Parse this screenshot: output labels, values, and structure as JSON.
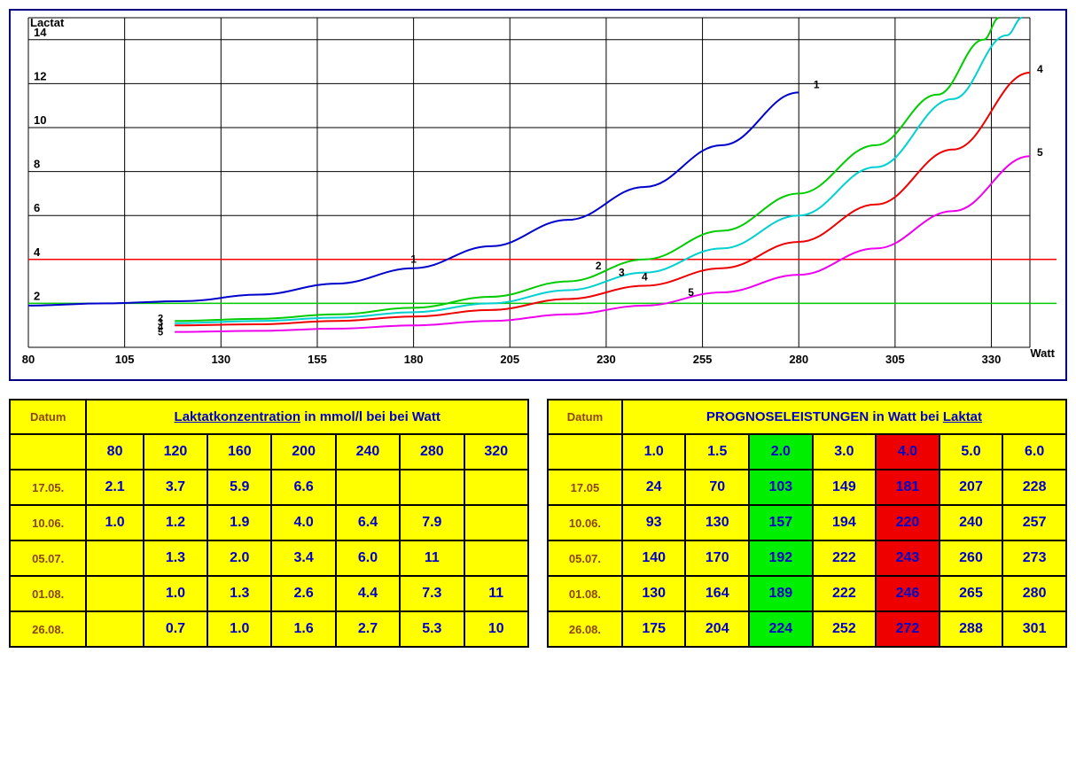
{
  "chart": {
    "type": "line",
    "y_axis_label": "Lactat",
    "x_axis_label": "Watt",
    "xlim": [
      80,
      340
    ],
    "ylim": [
      0,
      15
    ],
    "x_ticks": [
      80,
      105,
      130,
      155,
      180,
      205,
      230,
      255,
      280,
      305,
      330
    ],
    "y_ticks": [
      0,
      2,
      4,
      6,
      8,
      10,
      12,
      14
    ],
    "background_color": "#ffffff",
    "grid_color": "#000000",
    "border_color": "#000080",
    "axis_fontsize": 13,
    "reference_lines": [
      {
        "y": 4,
        "color": "#ff0000",
        "width": 1.5
      },
      {
        "y": 2,
        "color": "#00cc00",
        "width": 1.5
      }
    ],
    "series": [
      {
        "id": "1",
        "color": "#0000cc",
        "width": 2,
        "points": [
          {
            "x": 80,
            "y": 1.9
          },
          {
            "x": 100,
            "y": 2.0
          },
          {
            "x": 120,
            "y": 2.1
          },
          {
            "x": 140,
            "y": 2.4
          },
          {
            "x": 160,
            "y": 2.9
          },
          {
            "x": 180,
            "y": 3.6
          },
          {
            "x": 200,
            "y": 4.6
          },
          {
            "x": 220,
            "y": 5.8
          },
          {
            "x": 240,
            "y": 7.3
          },
          {
            "x": 260,
            "y": 9.2
          },
          {
            "x": 280,
            "y": 11.6
          }
        ],
        "label_start": {
          "x": 180,
          "y": 3.6,
          "text": "1"
        },
        "label_end": {
          "x": 282,
          "y": 11.8,
          "text": "1"
        }
      },
      {
        "id": "2",
        "color": "#00cc00",
        "width": 2,
        "points": [
          {
            "x": 118,
            "y": 1.2
          },
          {
            "x": 140,
            "y": 1.3
          },
          {
            "x": 160,
            "y": 1.5
          },
          {
            "x": 180,
            "y": 1.8
          },
          {
            "x": 200,
            "y": 2.3
          },
          {
            "x": 220,
            "y": 3.0
          },
          {
            "x": 240,
            "y": 4.0
          },
          {
            "x": 260,
            "y": 5.3
          },
          {
            "x": 280,
            "y": 7.0
          },
          {
            "x": 300,
            "y": 9.2
          },
          {
            "x": 316,
            "y": 11.5
          },
          {
            "x": 328,
            "y": 14.0
          },
          {
            "x": 332,
            "y": 15.0
          }
        ],
        "label_start": {
          "x": 228,
          "y": 3.3,
          "text": "2"
        },
        "label_end": {
          "x": 332,
          "y": 15.0,
          "text": ""
        }
      },
      {
        "id": "3",
        "color": "#00d0d0",
        "width": 2,
        "points": [
          {
            "x": 118,
            "y": 1.1
          },
          {
            "x": 140,
            "y": 1.2
          },
          {
            "x": 160,
            "y": 1.35
          },
          {
            "x": 180,
            "y": 1.6
          },
          {
            "x": 200,
            "y": 2.0
          },
          {
            "x": 220,
            "y": 2.6
          },
          {
            "x": 240,
            "y": 3.4
          },
          {
            "x": 260,
            "y": 4.5
          },
          {
            "x": 280,
            "y": 6.0
          },
          {
            "x": 300,
            "y": 8.2
          },
          {
            "x": 320,
            "y": 11.3
          },
          {
            "x": 334,
            "y": 14.2
          },
          {
            "x": 338,
            "y": 15.0
          }
        ],
        "label_start": {
          "x": 234,
          "y": 3.0,
          "text": "3"
        },
        "label_end": {
          "x": 338,
          "y": 15.0,
          "text": ""
        }
      },
      {
        "id": "4",
        "color": "#ee0000",
        "width": 2,
        "points": [
          {
            "x": 118,
            "y": 1.0
          },
          {
            "x": 140,
            "y": 1.05
          },
          {
            "x": 160,
            "y": 1.2
          },
          {
            "x": 180,
            "y": 1.4
          },
          {
            "x": 200,
            "y": 1.7
          },
          {
            "x": 220,
            "y": 2.2
          },
          {
            "x": 240,
            "y": 2.8
          },
          {
            "x": 260,
            "y": 3.6
          },
          {
            "x": 280,
            "y": 4.8
          },
          {
            "x": 300,
            "y": 6.5
          },
          {
            "x": 320,
            "y": 9.0
          },
          {
            "x": 340,
            "y": 12.5
          }
        ],
        "label_start": {
          "x": 240,
          "y": 2.8,
          "text": "4"
        },
        "label_end": {
          "x": 340,
          "y": 12.5,
          "text": "4"
        }
      },
      {
        "id": "5",
        "color": "#ee00ee",
        "width": 2,
        "points": [
          {
            "x": 118,
            "y": 0.7
          },
          {
            "x": 140,
            "y": 0.75
          },
          {
            "x": 160,
            "y": 0.85
          },
          {
            "x": 180,
            "y": 1.0
          },
          {
            "x": 200,
            "y": 1.2
          },
          {
            "x": 220,
            "y": 1.5
          },
          {
            "x": 240,
            "y": 1.9
          },
          {
            "x": 260,
            "y": 2.5
          },
          {
            "x": 280,
            "y": 3.3
          },
          {
            "x": 300,
            "y": 4.5
          },
          {
            "x": 320,
            "y": 6.2
          },
          {
            "x": 340,
            "y": 8.7
          }
        ],
        "label_start": {
          "x": 252,
          "y": 2.1,
          "text": "5"
        },
        "label_end": {
          "x": 340,
          "y": 8.7,
          "text": "5"
        }
      }
    ]
  },
  "table_left": {
    "datum_header": "Datum",
    "title_prefix": "Laktatkonzentration",
    "title_suffix": " in mmol/l bei bei Watt",
    "columns": [
      "80",
      "120",
      "160",
      "200",
      "240",
      "280",
      "320"
    ],
    "rows": [
      {
        "date": "17.05.",
        "values": [
          "2.1",
          "3.7",
          "5.9",
          "6.6",
          "",
          "",
          ""
        ]
      },
      {
        "date": "10.06.",
        "values": [
          "1.0",
          "1.2",
          "1.9",
          "4.0",
          "6.4",
          "7.9",
          ""
        ]
      },
      {
        "date": "05.07.",
        "values": [
          "",
          "1.3",
          "2.0",
          "3.4",
          "6.0",
          "11",
          ""
        ]
      },
      {
        "date": "01.08.",
        "values": [
          "",
          "1.0",
          "1.3",
          "2.6",
          "4.4",
          "7.3",
          "11"
        ]
      },
      {
        "date": "26.08.",
        "values": [
          "",
          "0.7",
          "1.0",
          "1.6",
          "2.7",
          "5.3",
          "10"
        ]
      }
    ]
  },
  "table_right": {
    "datum_header": "Datum",
    "title_full": "PROGNOSELEISTUNGEN in Watt bei Laktat",
    "title_underline_word": "Laktat",
    "columns": [
      "1.0",
      "1.5",
      "2.0",
      "3.0",
      "4.0",
      "5.0",
      "6.0"
    ],
    "highlight_cols": {
      "2": "green",
      "4": "red"
    },
    "rows": [
      {
        "date": "17.05",
        "values": [
          "24",
          "70",
          "103",
          "149",
          "181",
          "207",
          "228"
        ]
      },
      {
        "date": "10.06.",
        "values": [
          "93",
          "130",
          "157",
          "194",
          "220",
          "240",
          "257"
        ]
      },
      {
        "date": "05.07.",
        "values": [
          "140",
          "170",
          "192",
          "222",
          "243",
          "260",
          "273"
        ]
      },
      {
        "date": "01.08.",
        "values": [
          "130",
          "164",
          "189",
          "222",
          "246",
          "265",
          "280"
        ]
      },
      {
        "date": "26.08.",
        "values": [
          "175",
          "204",
          "224",
          "252",
          "272",
          "288",
          "301"
        ]
      }
    ]
  }
}
